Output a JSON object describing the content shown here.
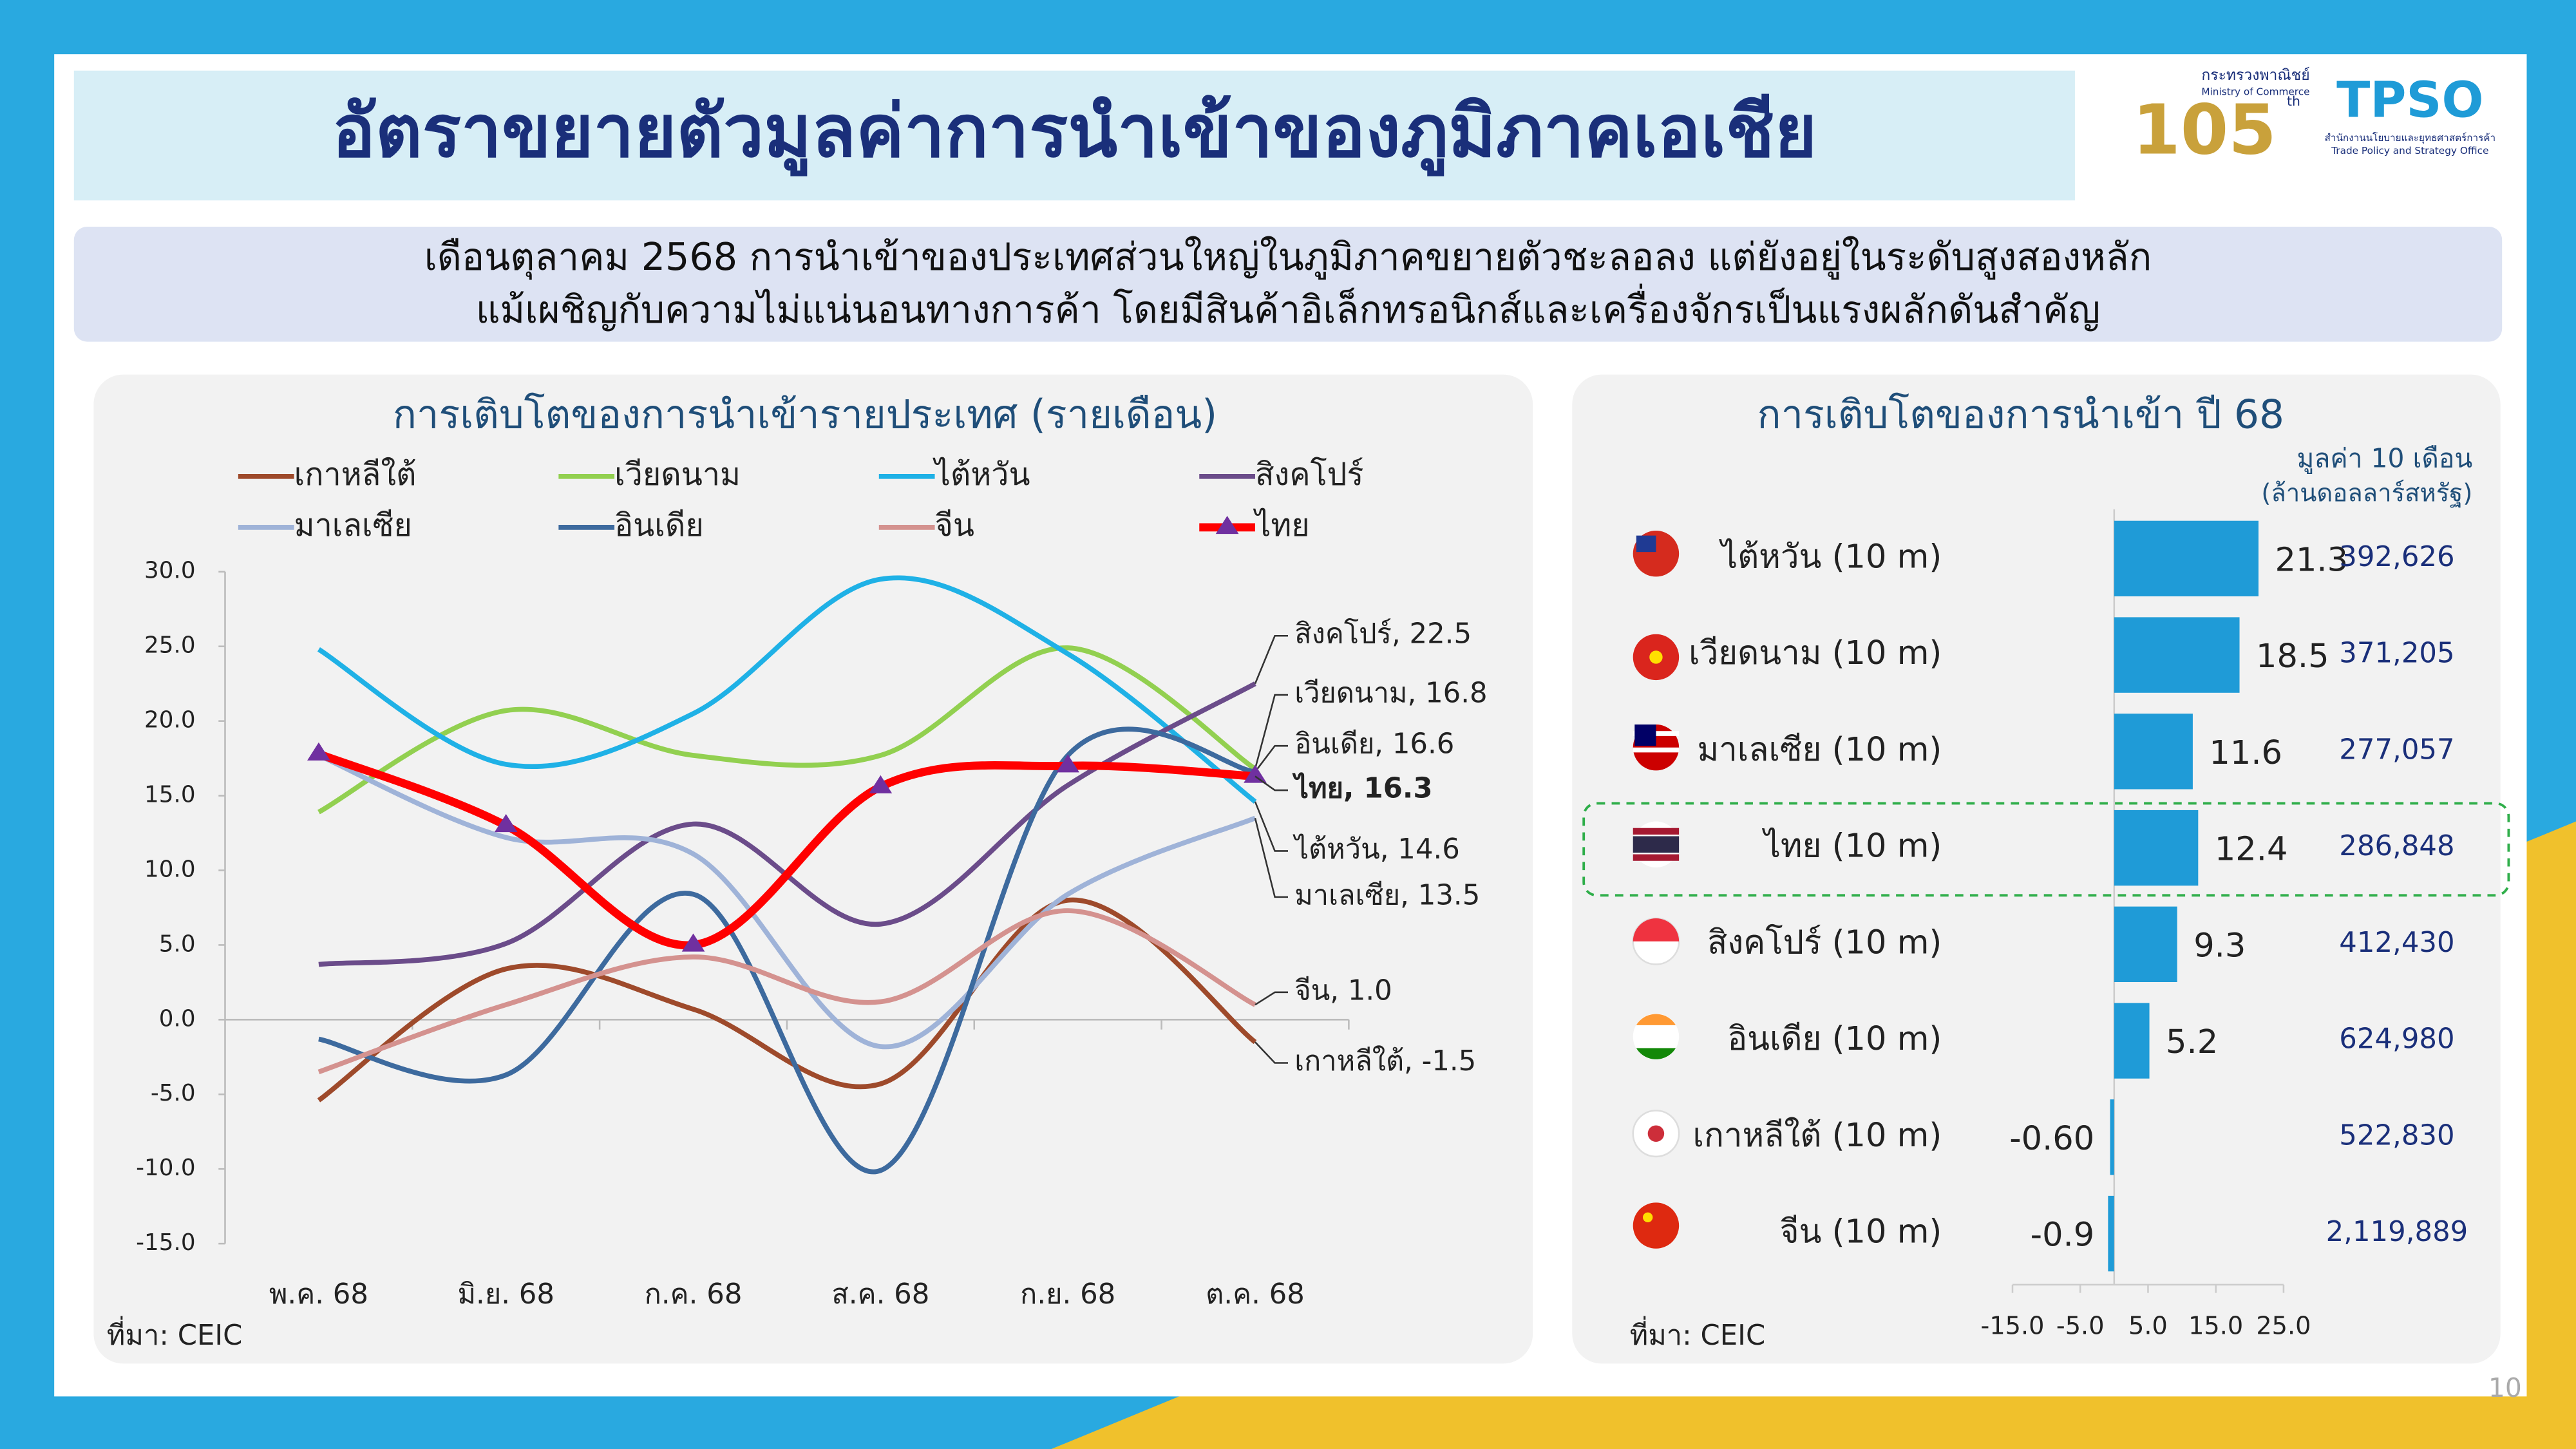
{
  "header": {
    "title": "อัตราขยายตัวมูลค่าการนำเข้าของภูมิภาคเอเชีย",
    "logo_ministry": [
      "กระทรวงพาณิชย์",
      "Ministry of Commerce"
    ],
    "logo_105": [
      "105",
      "th"
    ],
    "logo_tpso": [
      "TPSO",
      "สำนักงานนโยบายและยุทธศาสตร์การค้า",
      "Trade Policy and Strategy Office"
    ]
  },
  "summary": [
    "เดือนตุลาคม 2568 การนำเข้าของประเทศส่วนใหญ่ในภูมิภาคขยายตัวชะลอลง แต่ยังอยู่ในระดับสูงสองหลัก",
    "แม้เผชิญกับความไม่แน่นอนทางการค้า โดยมีสินค้าอิเล็กทรอนิกส์และเครื่องจักรเป็นแรงผลักดันสำคัญ"
  ],
  "chart_data": [
    {
      "type": "line",
      "title": "การเติบโตของการนำเข้ารายประเทศ (รายเดือน)",
      "categories": [
        "พ.ค. 68",
        "มิ.ย. 68",
        "ก.ค. 68",
        "ส.ค. 68",
        "ก.ย. 68",
        "ต.ค. 68"
      ],
      "series": [
        {
          "name": "เกาหลีใต้",
          "color": "#9e4a2b",
          "values": [
            -5.4,
            3.4,
            0.7,
            -4.3,
            8.0,
            -1.5
          ],
          "end_label": "เกาหลีใต้, -1.5"
        },
        {
          "name": "เวียดนาม",
          "color": "#92d050",
          "values": [
            13.9,
            20.7,
            17.7,
            17.7,
            24.9,
            16.8
          ],
          "end_label": "เวียดนาม, 16.8"
        },
        {
          "name": "ไต้หวัน",
          "color": "#1fb1e6",
          "values": [
            24.8,
            17.1,
            20.5,
            29.5,
            24.5,
            14.6
          ],
          "end_label": "ไต้หวัน, 14.6"
        },
        {
          "name": "สิงคโปร์",
          "color": "#6b4c8a",
          "values": [
            3.7,
            5.1,
            13.1,
            6.4,
            15.7,
            22.5
          ],
          "end_label": "สิงคโปร์, 22.5"
        },
        {
          "name": "มาเลเซีย",
          "color": "#9fb3d8",
          "values": [
            17.7,
            12.2,
            11.1,
            -1.8,
            8.4,
            13.5
          ],
          "end_label": "มาเลเซีย, 13.5"
        },
        {
          "name": "อินเดีย",
          "color": "#3d6a9e",
          "values": [
            -1.3,
            -3.7,
            8.4,
            -10.1,
            17.7,
            16.6
          ],
          "end_label": "อินเดีย, 16.6"
        },
        {
          "name": "จีน",
          "color": "#d4928f",
          "values": [
            -3.5,
            1.0,
            4.2,
            1.2,
            7.3,
            1.0
          ],
          "end_label": "จีน, 1.0"
        },
        {
          "name": "ไทย",
          "color": "#ff0000",
          "values": [
            17.8,
            13.0,
            5.0,
            15.6,
            17.0,
            16.3
          ],
          "end_label": "ไทย, 16.3",
          "marker": "triangle",
          "marker_color": "#7030a0"
        }
      ],
      "ylim": [
        -15,
        30
      ],
      "yticks": [
        {
          "value": 30,
          "label": "30.0"
        },
        {
          "value": 25,
          "label": "25.0"
        },
        {
          "value": 20,
          "label": "20.0"
        },
        {
          "value": 15,
          "label": "15.0"
        },
        {
          "value": 10,
          "label": "10.0"
        },
        {
          "value": 5,
          "label": "5.0"
        },
        {
          "value": 0,
          "label": "0.0"
        },
        {
          "value": -5,
          "label": "-5.0"
        },
        {
          "value": -10,
          "label": "-10.0"
        },
        {
          "value": -15,
          "label": "-15.0"
        }
      ],
      "source": "ที่มา: CEIC"
    },
    {
      "type": "bar",
      "orientation": "horizontal",
      "title": "การเติบโตของการนำเข้า ปี 68",
      "color": "#1f9bd7",
      "categories": [
        "ไต้หวัน (10 m)",
        "เวียดนาม (10 m)",
        "มาเลเซีย (10 m)",
        "ไทย (10 m)",
        "สิงคโปร์ (10 m)",
        "อินเดีย (10 m)",
        "เกาหลีใต้ (10 m)",
        "จีน (10 m)"
      ],
      "values": [
        21.3,
        18.5,
        11.6,
        12.4,
        9.3,
        5.2,
        -0.6,
        -0.9
      ],
      "value_labels": [
        "21.3",
        "18.5",
        "11.6",
        "12.4",
        "9.3",
        "5.2",
        "-0.60",
        "-0.9"
      ],
      "value_column": {
        "title": [
          "มูลค่า 10 เดือน",
          "(ล้านดอลลาร์สหรัฐ)"
        ],
        "labels": [
          "392,626",
          "371,205",
          "277,057",
          "286,848",
          "412,430",
          "624,980",
          "522,830",
          "2,119,889"
        ]
      },
      "xlim": [
        -15,
        25
      ],
      "xticks": [
        {
          "value": -15,
          "label": "-15.0"
        },
        {
          "value": -5,
          "label": "-5.0"
        },
        {
          "value": 5,
          "label": "5.0"
        },
        {
          "value": 15,
          "label": "15.0"
        },
        {
          "value": 25,
          "label": "25.0"
        }
      ],
      "source": "ที่มา: CEIC"
    }
  ],
  "page_number": "10"
}
